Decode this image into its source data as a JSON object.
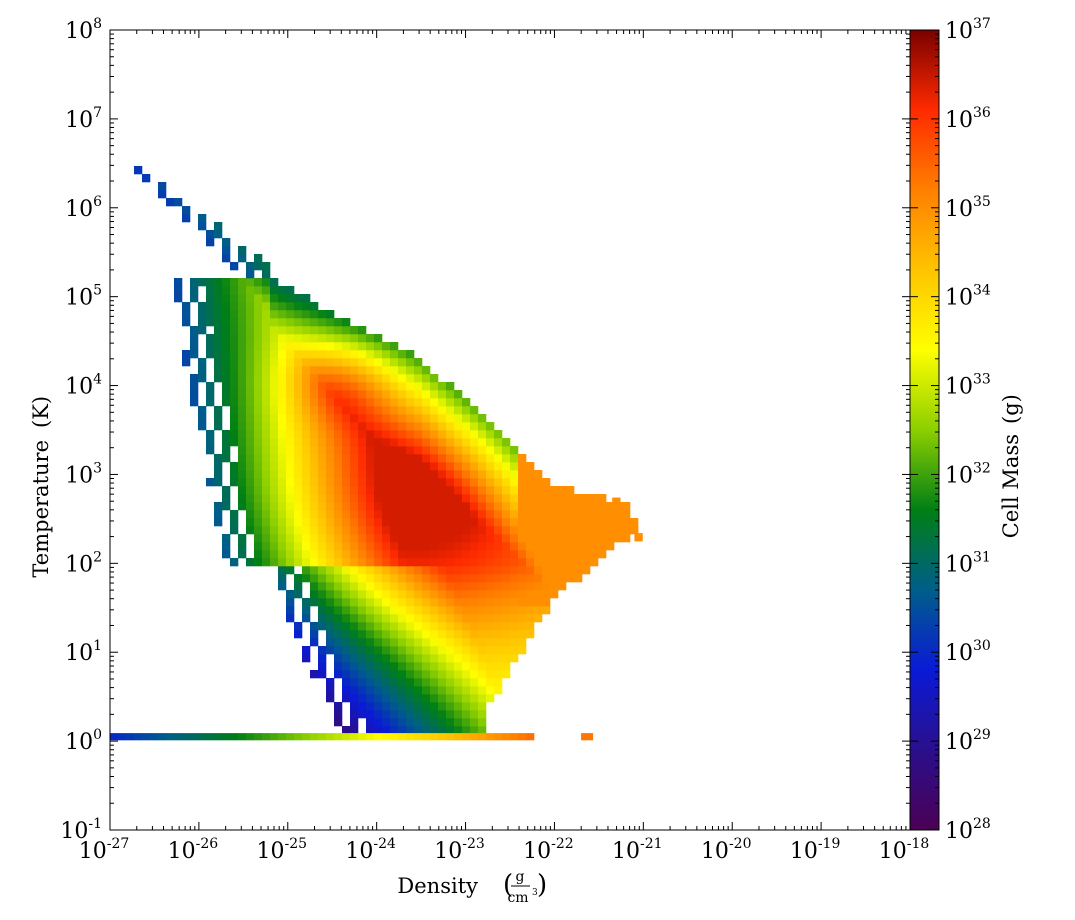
{
  "chart_data": {
    "type": "heatmap",
    "title": "",
    "xlabel": "Density",
    "xunit_num": "g",
    "xunit_den": "cm",
    "xunit_den_sup": "3",
    "ylabel": "Temperature",
    "yunit": "(K)",
    "colorbar_label": "Cell Mass",
    "colorbar_unit": "(g)",
    "xscale": "log",
    "yscale": "log",
    "colorscale": "log",
    "xlim": [
      1e-27,
      1e-18
    ],
    "ylim": [
      0.1,
      100000000.0
    ],
    "clim": [
      1e+28,
      1e+37
    ],
    "x_ticks": [
      {
        "base": "10",
        "exp": "-27"
      },
      {
        "base": "10",
        "exp": "-26"
      },
      {
        "base": "10",
        "exp": "-25"
      },
      {
        "base": "10",
        "exp": "-24"
      },
      {
        "base": "10",
        "exp": "-23"
      },
      {
        "base": "10",
        "exp": "-22"
      },
      {
        "base": "10",
        "exp": "-21"
      },
      {
        "base": "10",
        "exp": "-20"
      },
      {
        "base": "10",
        "exp": "-19"
      },
      {
        "base": "10",
        "exp": "-18"
      }
    ],
    "y_ticks": [
      {
        "base": "10",
        "exp": "-1"
      },
      {
        "base": "10",
        "exp": "0"
      },
      {
        "base": "10",
        "exp": "1"
      },
      {
        "base": "10",
        "exp": "2"
      },
      {
        "base": "10",
        "exp": "3"
      },
      {
        "base": "10",
        "exp": "4"
      },
      {
        "base": "10",
        "exp": "5"
      },
      {
        "base": "10",
        "exp": "6"
      },
      {
        "base": "10",
        "exp": "7"
      },
      {
        "base": "10",
        "exp": "8"
      }
    ],
    "colorbar_ticks": [
      {
        "base": "10",
        "exp": "28"
      },
      {
        "base": "10",
        "exp": "29"
      },
      {
        "base": "10",
        "exp": "30"
      },
      {
        "base": "10",
        "exp": "31"
      },
      {
        "base": "10",
        "exp": "32"
      },
      {
        "base": "10",
        "exp": "33"
      },
      {
        "base": "10",
        "exp": "34"
      },
      {
        "base": "10",
        "exp": "35"
      },
      {
        "base": "10",
        "exp": "36"
      },
      {
        "base": "10",
        "exp": "37"
      }
    ],
    "colormap": [
      "#4b0055",
      "#2a0f8c",
      "#0a1ad6",
      "#005e8a",
      "#007f15",
      "#8ccf00",
      "#ffff00",
      "#ffc400",
      "#ff7f00",
      "#ff2a00",
      "#7a0000"
    ],
    "grid": false,
    "features": [
      {
        "log_density": -23.5,
        "log_temperature": 2.7,
        "log_mass": 36.3
      },
      {
        "log_density": -24.4,
        "log_temperature": 4.05,
        "log_mass": 36.4
      },
      {
        "log_density": -25.0,
        "log_temperature": 3.5,
        "log_mass": 33.8
      },
      {
        "log_density": -21.4,
        "log_temperature": 2.5,
        "log_mass": 35.2
      },
      {
        "log_density": -26.5,
        "log_temperature": 6.5,
        "log_mass": 30.2
      }
    ]
  }
}
